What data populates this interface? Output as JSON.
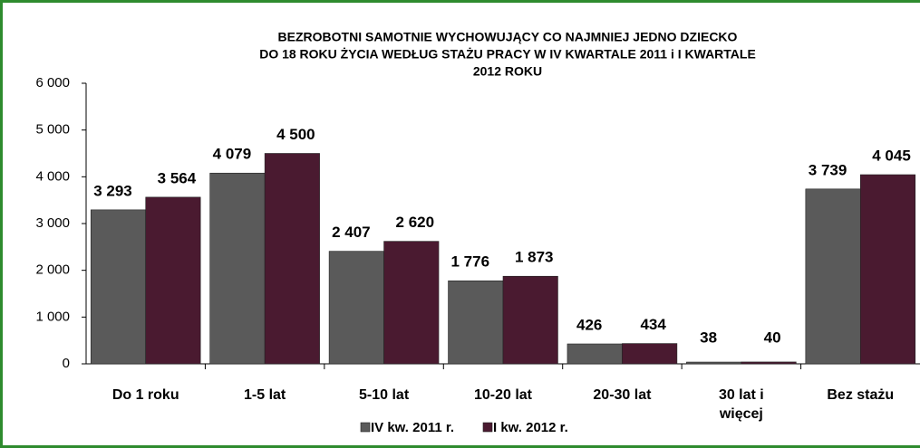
{
  "chart_data": {
    "type": "bar",
    "title": [
      "BEZROBOTNI  SAMOTNIE WYCHOWUJĄCY CO NAJMNIEJ JEDNO DZIECKO",
      "DO 18 ROKU ŻYCIA WEDŁUG STAŻU  PRACY  W  IV KWARTALE 2011  i I KWARTALE",
      "2012 ROKU"
    ],
    "categories": [
      "Do 1 roku",
      "1-5 lat",
      "5-10 lat",
      "10-20 lat",
      "20-30 lat",
      "30 lat i więcej",
      "Bez stażu"
    ],
    "series": [
      {
        "name": "IV kw. 2011 r.",
        "color": "#5a5a5a",
        "values": [
          3293,
          4079,
          2407,
          1776,
          426,
          38,
          3739
        ],
        "value_labels": [
          "3 293",
          "4 079",
          "2 407",
          "1 776",
          "426",
          "38",
          "3 739"
        ]
      },
      {
        "name": "I kw. 2012 r.",
        "color": "#4a1a30",
        "values": [
          3564,
          4500,
          2620,
          1873,
          434,
          40,
          4045
        ],
        "value_labels": [
          "3 564",
          "4 500",
          "2 620",
          "1 873",
          "434",
          "40",
          "4 045"
        ]
      }
    ],
    "ylim": [
      0,
      6000
    ],
    "yticks": [
      0,
      {
        "value": 1000,
        "label": "1 000"
      },
      {
        "value": 2000,
        "label": "2 000"
      },
      {
        "value": 3000,
        "label": "3 000"
      },
      {
        "value": 4000,
        "label": "4 000"
      },
      {
        "value": 5000,
        "label": "5 000"
      },
      {
        "value": 6000,
        "label": "6 000"
      }
    ],
    "legend": "bottom"
  }
}
